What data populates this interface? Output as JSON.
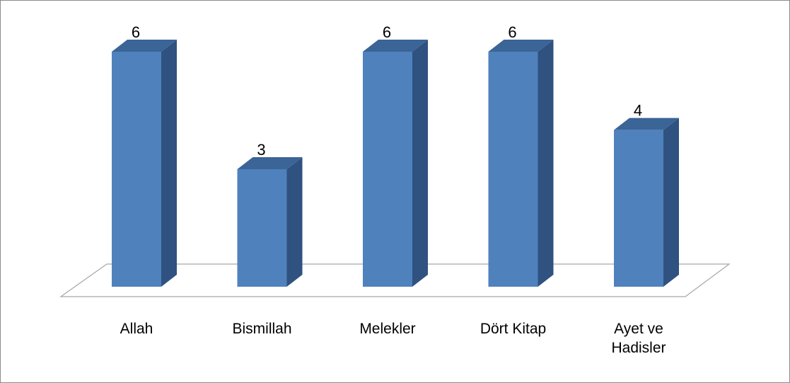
{
  "chart_data": {
    "type": "bar",
    "style": "3d-column",
    "categories": [
      "Allah",
      "Bismillah",
      "Melekler",
      "Dört Kitap",
      "Ayet ve Hadisler"
    ],
    "category_lines": [
      [
        "Allah"
      ],
      [
        "Bismillah"
      ],
      [
        "Melekler"
      ],
      [
        "Dört Kitap"
      ],
      [
        "Ayet ve",
        "Hadisler"
      ]
    ],
    "values": [
      6,
      3,
      6,
      6,
      4
    ],
    "value_labels": [
      "6",
      "3",
      "6",
      "6",
      "4"
    ],
    "ylim": [
      0,
      6
    ],
    "grid": false,
    "legend": "none",
    "colors": {
      "front": "#4f81bd",
      "side": "#2f5280",
      "top": "#3b6497",
      "floor_stroke": "#a6a6a6",
      "frame": "#8c8c8c"
    }
  }
}
